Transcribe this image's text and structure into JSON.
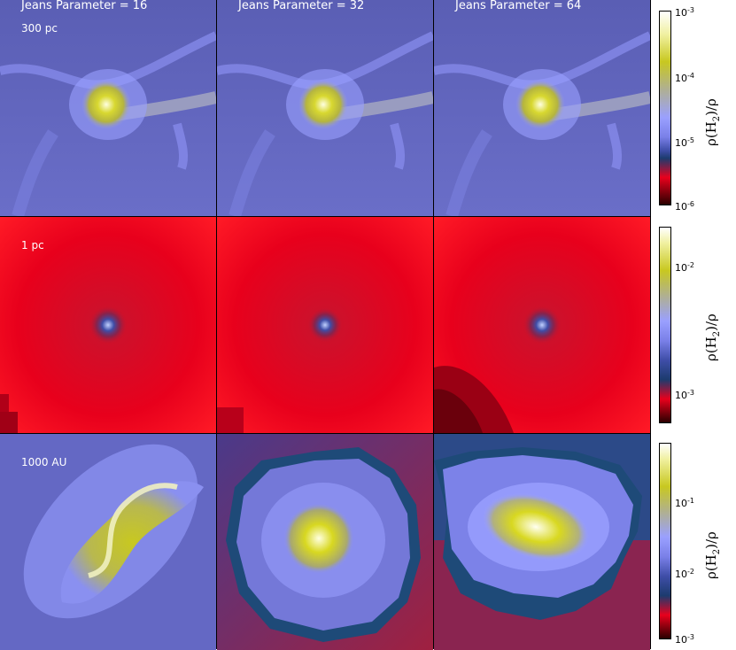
{
  "columns": [
    {
      "title": "Jeans Parameter = 16"
    },
    {
      "title": "Jeans Parameter = 32"
    },
    {
      "title": "Jeans Parameter = 64"
    }
  ],
  "rows": [
    {
      "scale_label": "300 pc",
      "colorbar": {
        "labels": [
          {
            "base": "10",
            "exp": "-3"
          },
          {
            "base": "10",
            "exp": "-4"
          },
          {
            "base": "10",
            "exp": "-5"
          },
          {
            "base": "10",
            "exp": "-6"
          }
        ],
        "title_rho": "ρ(H",
        "title_sub": "2",
        "title_end": ")/ρ"
      }
    },
    {
      "scale_label": "1 pc",
      "colorbar": {
        "labels": [
          {
            "base": "10",
            "exp": "-2"
          },
          {
            "base": "10",
            "exp": "-3"
          }
        ],
        "title_rho": "ρ(H",
        "title_sub": "2",
        "title_end": ")/ρ"
      }
    },
    {
      "scale_label": "1000 AU",
      "colorbar": {
        "labels": [
          {
            "base": "10",
            "exp": "-1"
          },
          {
            "base": "10",
            "exp": "-2"
          },
          {
            "base": "10",
            "exp": "-3"
          }
        ],
        "title_rho": "ρ(H",
        "title_sub": "2",
        "title_end": ")/ρ"
      }
    }
  ],
  "colormap": {
    "stops": [
      "#2b0000",
      "#e8001c",
      "#ff1f2b",
      "#1c3b6e",
      "#3f4ea8",
      "#7a80e8",
      "#9aa0ff",
      "#b8b890",
      "#c8c820",
      "#f0f0a0",
      "#ffffff"
    ]
  }
}
